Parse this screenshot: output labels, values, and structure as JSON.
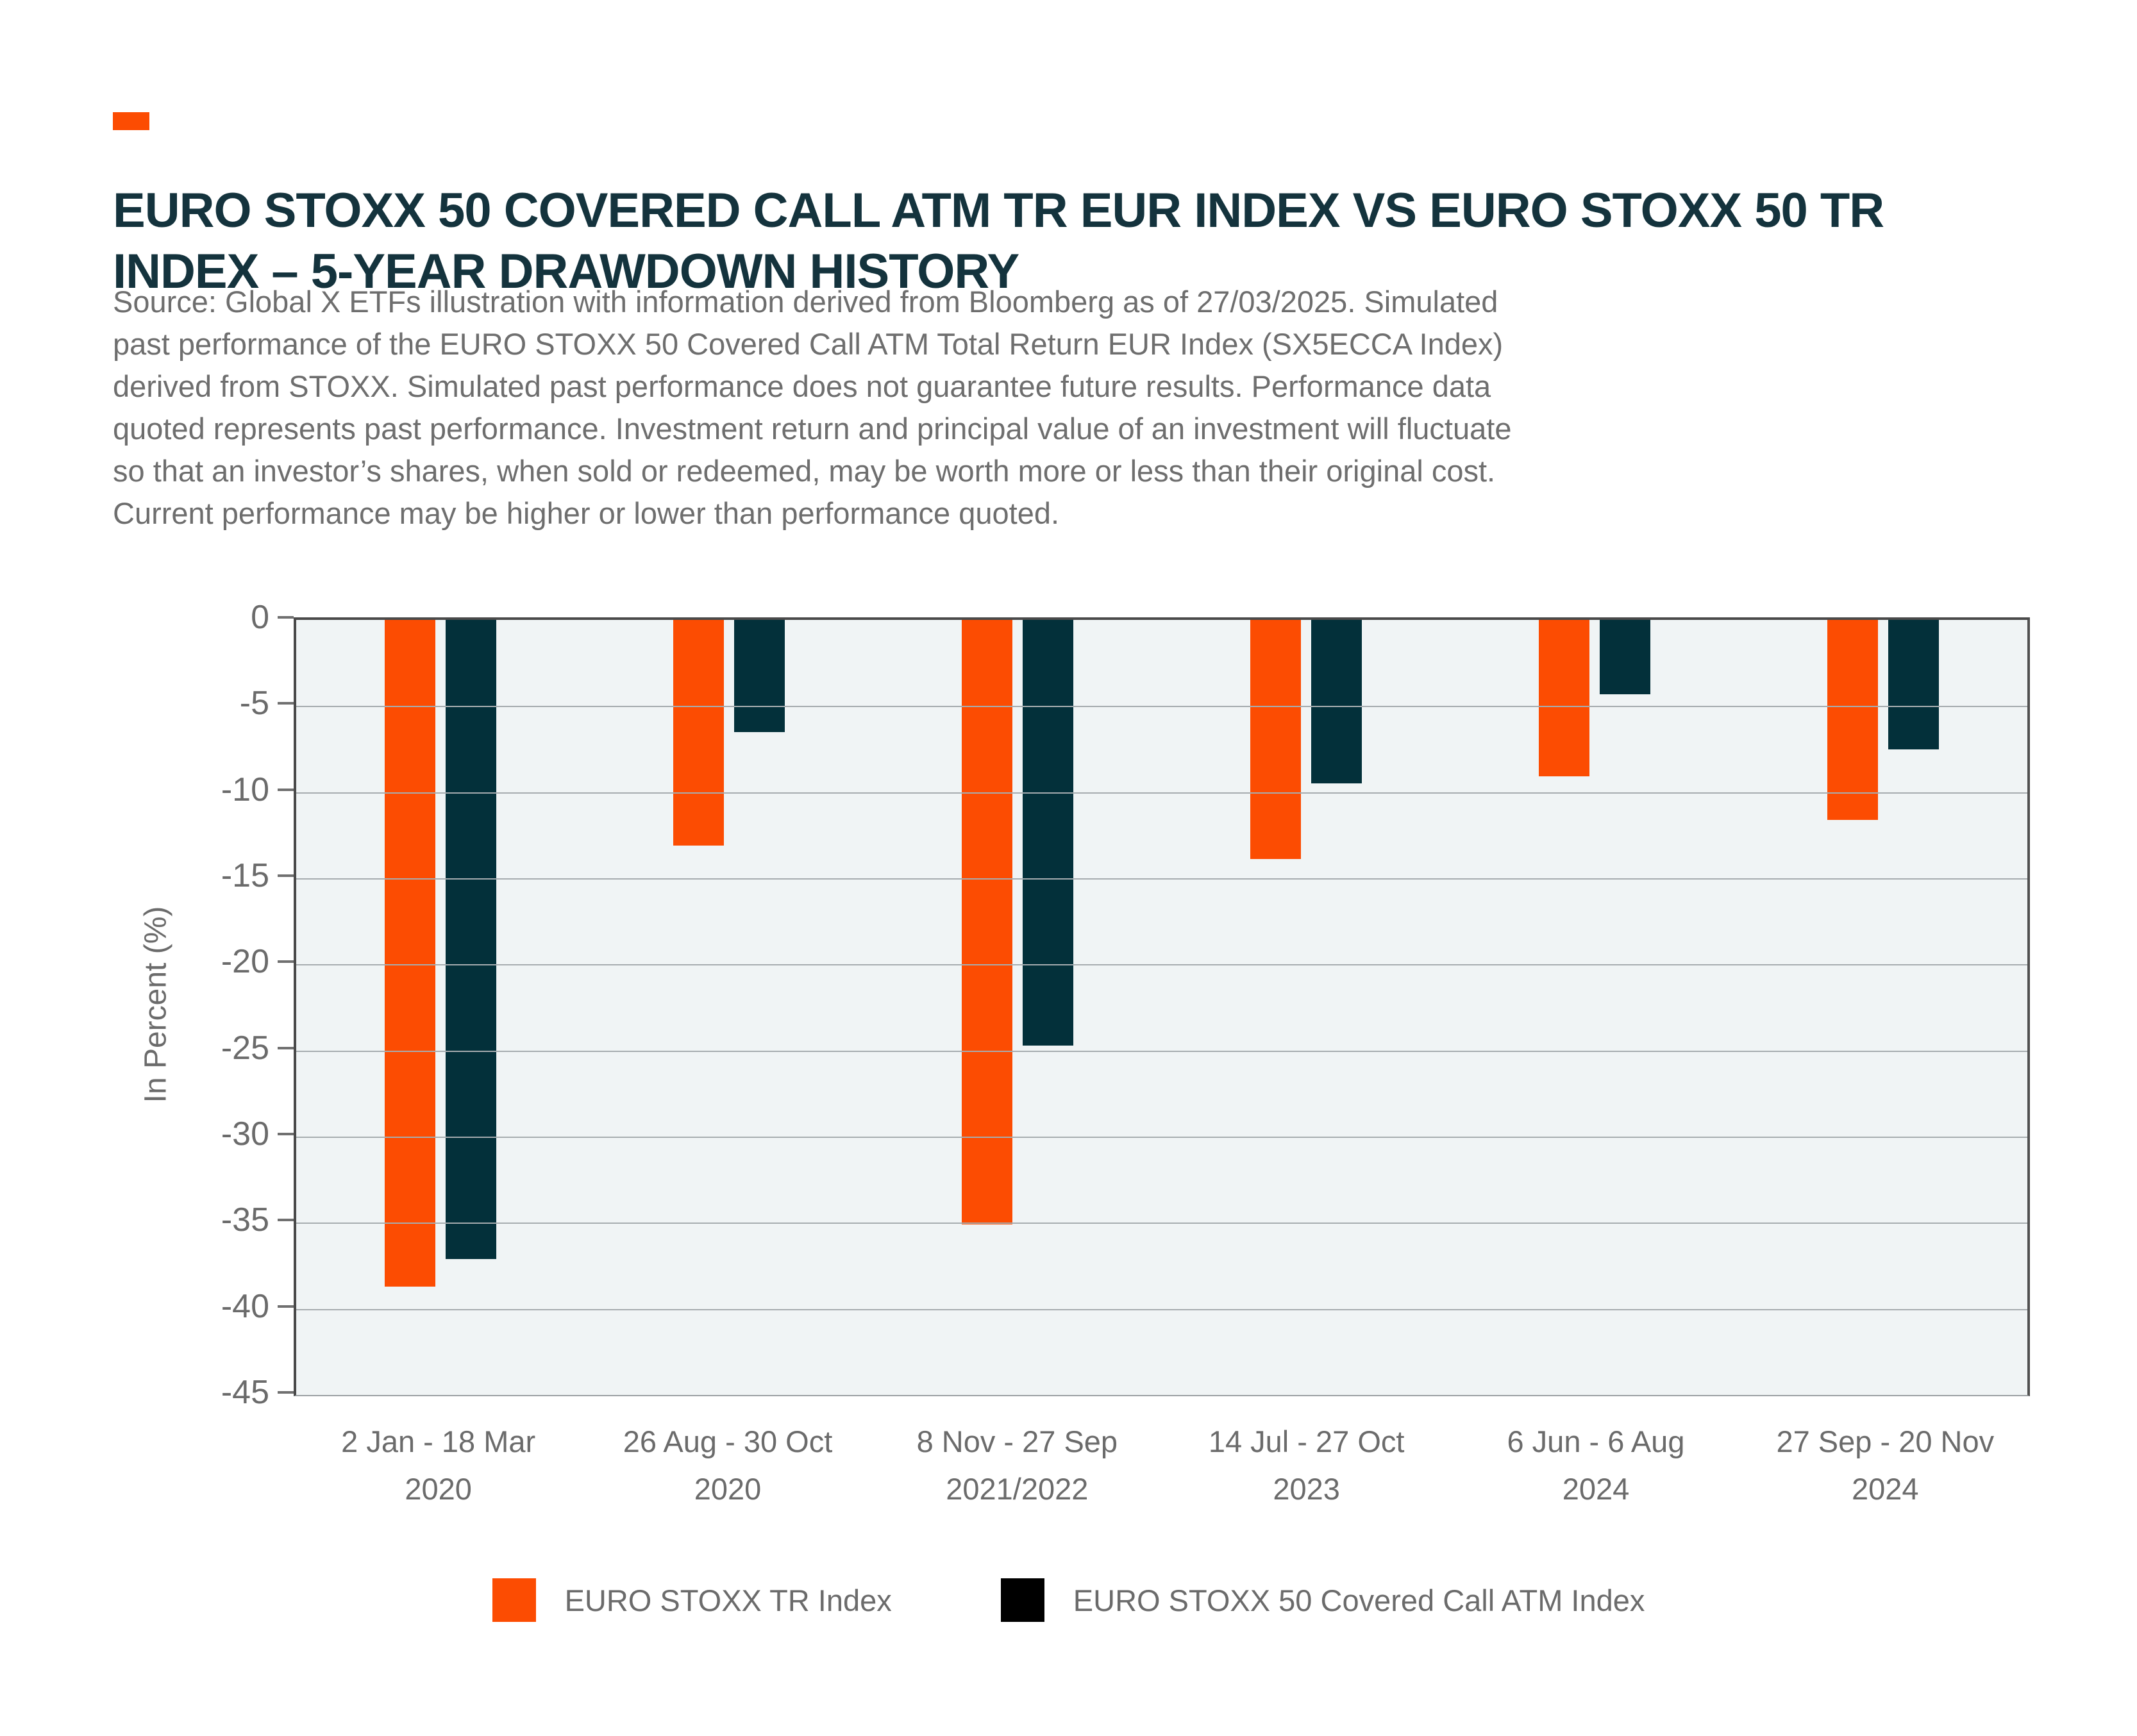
{
  "header": {
    "title_lines": [
      "EURO STOXX 50 COVERED CALL ATM TR EUR INDEX VS EURO STOXX 50 TR",
      "INDEX – 5-YEAR DRAWDOWN HISTORY"
    ],
    "source_lines": [
      "Source: Global X ETFs illustration with information derived from Bloomberg as of 27/03/2025. Simulated",
      "past performance of the EURO STOXX 50 Covered Call ATM Total Return EUR Index (SX5ECCA Index)",
      "derived from STOXX. Simulated past performance does not guarantee future results. Performance data",
      "quoted represents past performance. Investment return and principal value of an investment will fluctuate",
      "so that an investor’s shares, when sold or redeemed, may be worth more or less than their original cost.",
      "Current performance may be higher or lower than performance quoted."
    ]
  },
  "colors": {
    "accent_orange": "#FC4C02",
    "bar_orange": "#FC4C02",
    "bar_dark_teal": "#03303A",
    "legend_black": "#000000",
    "title_text": "#14333D",
    "body_text": "#6E6E6E",
    "plot_background": "#F0F4F5"
  },
  "chart_data": {
    "type": "bar",
    "title": "EURO STOXX 50 COVERED CALL ATM TR EUR INDEX VS EURO STOXX 50 TR INDEX – 5-YEAR DRAWDOWN HISTORY",
    "xlabel": "",
    "ylabel": "In Percent (%)",
    "ylim": [
      -45,
      0
    ],
    "yticks": [
      0,
      -5,
      -10,
      -15,
      -20,
      -25,
      -30,
      -35,
      -40,
      -45
    ],
    "grid": true,
    "legend_position": "bottom",
    "categories": [
      [
        "2 Jan - 18 Mar",
        "2020"
      ],
      [
        "26 Aug - 30 Oct",
        "2020"
      ],
      [
        "8 Nov - 27 Sep",
        "2021/2022"
      ],
      [
        "14 Jul - 27 Oct",
        "2023"
      ],
      [
        "6 Jun - 6 Aug",
        "2024"
      ],
      [
        "27 Sep - 20 Nov",
        "2024"
      ]
    ],
    "series": [
      {
        "name": "EURO STOXX TR Index",
        "color": "#FC4C02",
        "legend_color": "#FC4C02",
        "values": [
          -38.7,
          -13.1,
          -35.1,
          -13.9,
          -9.1,
          -11.6
        ]
      },
      {
        "name": "EURO STOXX 50 Covered Call ATM Index",
        "color": "#03303A",
        "legend_color": "#000000",
        "values": [
          -37.1,
          -6.5,
          -24.7,
          -9.5,
          -4.3,
          -7.5
        ]
      }
    ]
  }
}
